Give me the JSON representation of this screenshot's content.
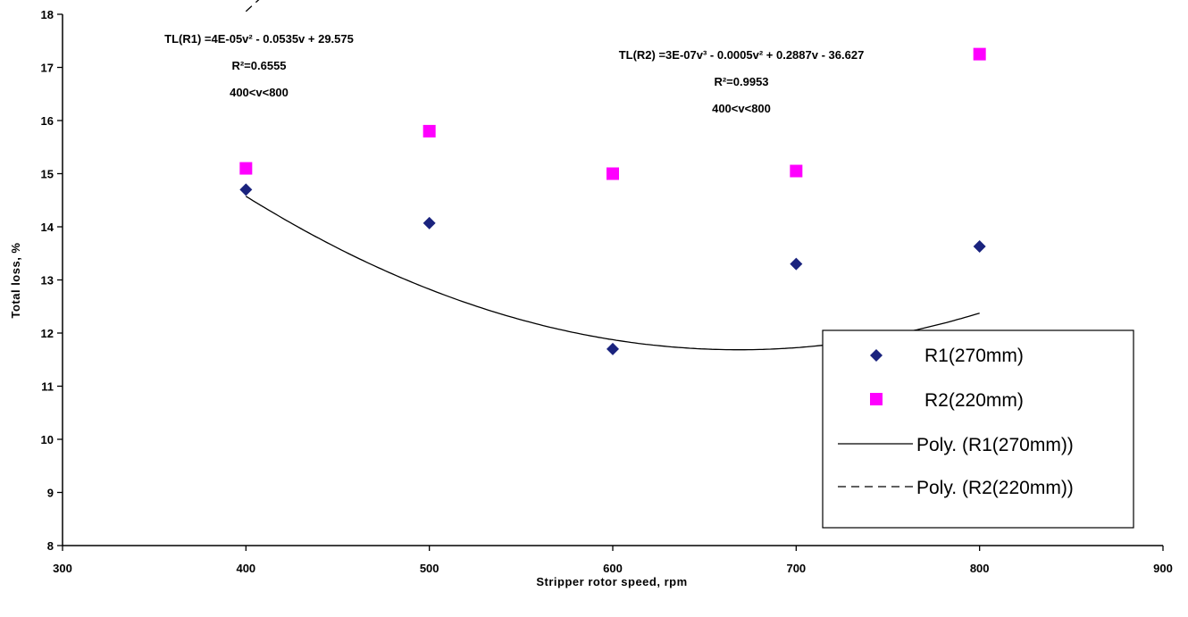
{
  "chart_data": {
    "type": "scatter",
    "xlabel": "Stripper rotor speed, rpm",
    "ylabel": "Total loss, %",
    "xlim": [
      300,
      900
    ],
    "ylim": [
      8,
      18
    ],
    "xticks": [
      300,
      400,
      500,
      600,
      700,
      800,
      900
    ],
    "yticks": [
      8,
      9,
      10,
      11,
      12,
      13,
      14,
      15,
      16,
      17,
      18
    ],
    "grid": false,
    "legend_position": "bottom-right",
    "series": [
      {
        "name": "R1(270mm)",
        "marker": "diamond",
        "color": "#1a237e",
        "x": [
          400,
          500,
          600,
          700,
          800
        ],
        "y": [
          14.7,
          14.07,
          11.7,
          13.3,
          13.63
        ]
      },
      {
        "name": "R2(220mm)",
        "marker": "square",
        "color": "#ff00ff",
        "x": [
          400,
          500,
          600,
          700,
          800
        ],
        "y": [
          15.1,
          15.8,
          15.0,
          15.05,
          17.25
        ]
      }
    ],
    "trendlines": [
      {
        "name": "Poly. (R1(270mm))",
        "style": "solid",
        "coefficients": [
          4e-05,
          -0.0535,
          29.575
        ],
        "equation": "TL(R1) =4E-05v² - 0.0535v + 29.575",
        "r2": "R²=0.6555",
        "range": "400<v<800"
      },
      {
        "name": "Poly. (R2(220mm))",
        "style": "dashed",
        "coefficients": [
          3e-07,
          -0.0005,
          0.2887,
          -36.627
        ],
        "equation": "TL(R2) =3E-07v³ - 0.0005v² + 0.2887v - 36.627",
        "r2": "R²=0.9953",
        "range": "400<v<800"
      }
    ]
  }
}
